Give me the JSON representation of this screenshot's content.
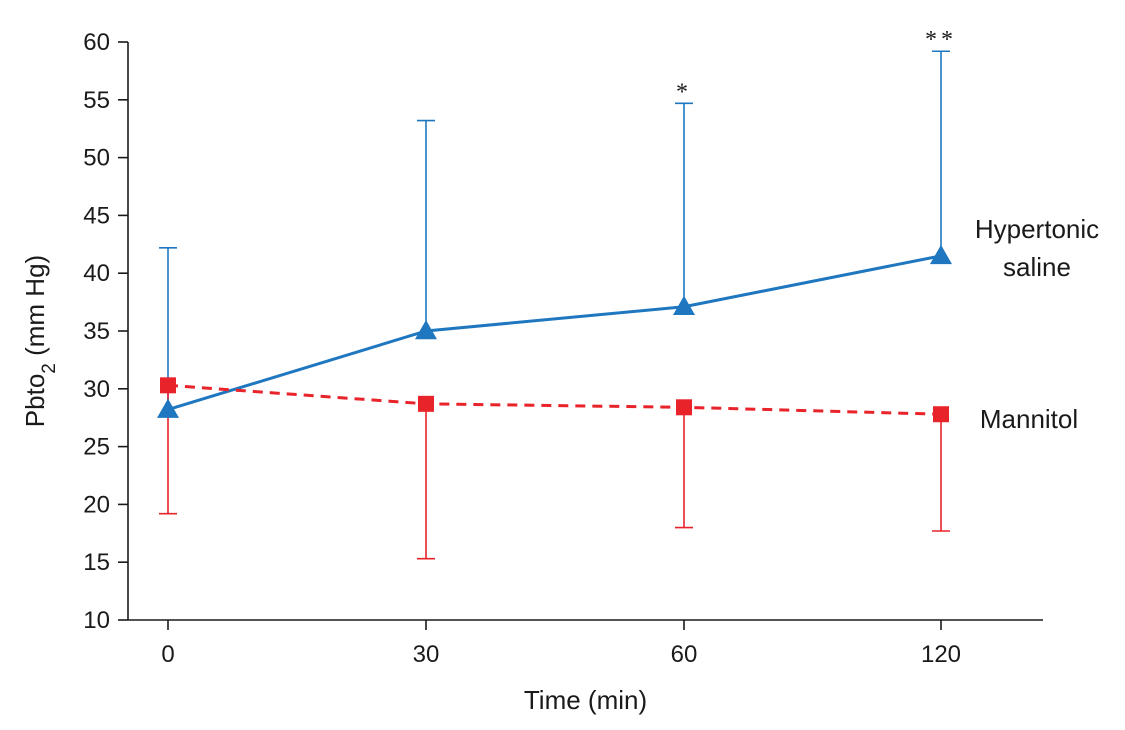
{
  "chart_data": {
    "type": "line",
    "xlabel": "Time (min)",
    "ylabel": {
      "main": "Pbto",
      "sub": "2",
      "suffix": " (mm Hg)"
    },
    "categories": [
      "0",
      "30",
      "60",
      "120"
    ],
    "ylim": [
      10,
      60
    ],
    "yticks": [
      10,
      15,
      20,
      25,
      30,
      35,
      40,
      45,
      50,
      55,
      60
    ],
    "grid": false,
    "legend": "none",
    "series": [
      {
        "name": "Hypertonic saline",
        "label_lines": [
          "Hypertonic",
          "saline"
        ],
        "color": "#1f77c0",
        "marker": "triangle",
        "line_style": "solid",
        "values": [
          28.2,
          35.0,
          37.1,
          41.5
        ],
        "error_upper": [
          42.2,
          53.2,
          54.7,
          59.2
        ],
        "error_direction": "up"
      },
      {
        "name": "Mannitol",
        "label_lines": [
          "Mannitol"
        ],
        "color": "#e8232a",
        "marker": "square",
        "line_style": "dashed",
        "values": [
          30.3,
          28.7,
          28.4,
          27.8
        ],
        "error_lower": [
          19.2,
          15.3,
          18.0,
          17.7
        ],
        "error_direction": "down"
      }
    ],
    "annotations": [
      {
        "category_index": 2,
        "text": "*"
      },
      {
        "category_index": 3,
        "text": "**"
      }
    ]
  }
}
